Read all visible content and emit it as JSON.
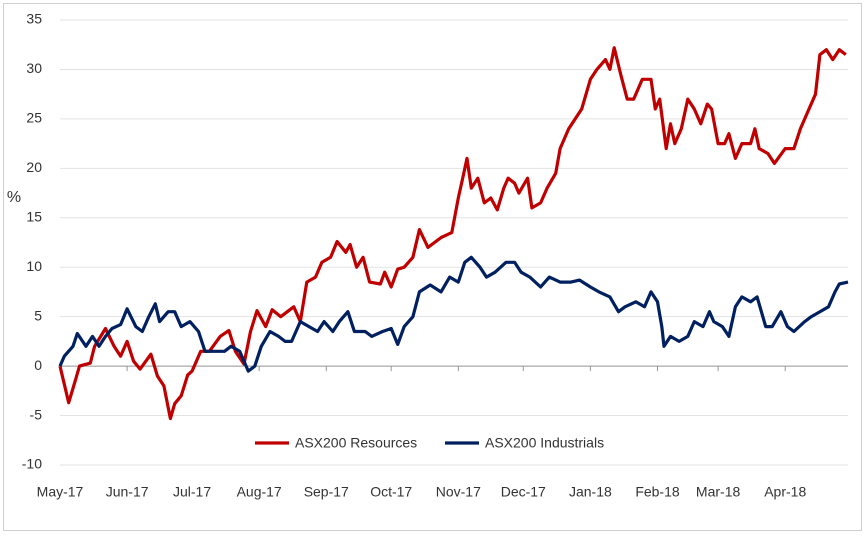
{
  "chart_data": {
    "type": "line",
    "y_label": "%",
    "ylim": [
      -10,
      35
    ],
    "yticks": [
      -10,
      -5,
      0,
      5,
      10,
      15,
      20,
      25,
      30,
      35
    ],
    "xlim": [
      0,
      364
    ],
    "xticks": [
      {
        "value": 0,
        "label": "May-17"
      },
      {
        "value": 31,
        "label": "Jun-17"
      },
      {
        "value": 61,
        "label": "Jul-17"
      },
      {
        "value": 92,
        "label": "Aug-17"
      },
      {
        "value": 123,
        "label": "Sep-17"
      },
      {
        "value": 153,
        "label": "Oct-17"
      },
      {
        "value": 184,
        "label": "Nov-17"
      },
      {
        "value": 214,
        "label": "Dec-17"
      },
      {
        "value": 245,
        "label": "Jan-18"
      },
      {
        "value": 276,
        "label": "Feb-18"
      },
      {
        "value": 304,
        "label": "Mar-18"
      },
      {
        "value": 335,
        "label": "Apr-18"
      }
    ],
    "grid": true,
    "legend": "bottom",
    "series": [
      {
        "name": "ASX200 Resources",
        "color": "#c00000",
        "x": [
          0,
          4,
          7,
          9,
          14,
          16,
          21,
          25,
          28,
          31,
          34,
          37,
          42,
          45,
          48,
          51,
          53,
          56,
          59,
          61,
          65,
          69,
          74,
          78,
          81,
          85,
          88,
          91,
          95,
          98,
          102,
          105,
          108,
          111,
          114,
          118,
          121,
          125,
          128,
          132,
          134,
          137,
          140,
          143,
          148,
          150,
          153,
          156,
          159,
          163,
          166,
          170,
          173,
          176,
          181,
          184,
          186,
          188,
          190,
          193,
          196,
          199,
          202,
          205,
          207,
          210,
          212,
          216,
          218,
          222,
          225,
          229,
          231,
          235,
          238,
          241,
          245,
          248,
          252,
          254,
          256,
          259,
          262,
          265,
          269,
          273,
          275,
          277,
          280,
          282,
          284,
          287,
          290,
          293,
          296,
          299,
          301,
          304,
          307,
          309,
          312,
          315,
          319,
          321,
          323,
          327,
          330,
          335,
          339,
          342,
          346,
          349,
          351,
          354,
          357,
          360,
          363
        ],
        "values": [
          0,
          -3.7,
          -1.5,
          0,
          0.3,
          2,
          3.8,
          2,
          1,
          2.5,
          0.5,
          -0.3,
          1.2,
          -1,
          -2,
          -5.3,
          -3.8,
          -3,
          -0.9,
          -0.5,
          1.5,
          1.5,
          3,
          3.6,
          1.5,
          0.2,
          3.5,
          5.6,
          4,
          5.7,
          5,
          5.5,
          6,
          4.5,
          8.5,
          9,
          10.5,
          11,
          12.6,
          11.5,
          12.3,
          10,
          11,
          8.5,
          8.3,
          9.5,
          8,
          9.8,
          10,
          11,
          13.8,
          12,
          12.5,
          13,
          13.5,
          17,
          19,
          21,
          18,
          19,
          16.5,
          17,
          15.8,
          18,
          19,
          18.5,
          17.5,
          19,
          16,
          16.5,
          18,
          19.5,
          22,
          24,
          25,
          26,
          29,
          30,
          31,
          30,
          32.2,
          29.5,
          27,
          27,
          29,
          29,
          26,
          27,
          22,
          24.5,
          22.5,
          24,
          27,
          26,
          24.5,
          26.5,
          26,
          22.5,
          22.5,
          23.5,
          21,
          22.5,
          22.5,
          24,
          22,
          21.5,
          20.5,
          22,
          22,
          24,
          26,
          27.5,
          31.5,
          32,
          31,
          32,
          31.5
        ]
      },
      {
        "name": "ASX200 Industrials",
        "color": "#002060",
        "x": [
          0,
          2,
          6,
          8,
          12,
          15,
          18,
          21,
          24,
          28,
          31,
          35,
          38,
          41,
          44,
          46,
          50,
          53,
          56,
          60,
          64,
          67,
          72,
          76,
          79,
          83,
          87,
          90,
          93,
          97,
          101,
          104,
          107,
          111,
          115,
          119,
          122,
          126,
          129,
          133,
          136,
          141,
          144,
          149,
          153,
          156,
          159,
          163,
          166,
          171,
          176,
          180,
          184,
          187,
          190,
          194,
          197,
          201,
          206,
          210,
          213,
          217,
          222,
          226,
          231,
          236,
          240,
          245,
          249,
          254,
          258,
          261,
          266,
          270,
          273,
          276,
          278,
          279,
          282,
          286,
          290,
          293,
          297,
          300,
          302,
          306,
          309,
          312,
          315,
          319,
          322,
          326,
          329,
          333,
          336,
          339,
          344,
          347,
          351,
          355,
          358,
          360,
          364
        ],
        "values": [
          0,
          1,
          2,
          3.3,
          2,
          3,
          2,
          3,
          3.8,
          4.2,
          5.8,
          4,
          3.5,
          5,
          6.3,
          4.5,
          5.5,
          5.5,
          4,
          4.5,
          3.5,
          1.5,
          1.5,
          1.5,
          2,
          1.5,
          -0.5,
          0,
          2,
          3.5,
          3,
          2.5,
          2.5,
          4.5,
          4,
          3.5,
          4.5,
          3.5,
          4.5,
          5.5,
          3.5,
          3.5,
          3,
          3.5,
          3.8,
          2.2,
          4,
          5,
          7.5,
          8.2,
          7.5,
          9,
          8.5,
          10.5,
          11,
          10,
          9,
          9.5,
          10.5,
          10.5,
          9.5,
          9,
          8,
          9,
          8.5,
          8.5,
          8.7,
          8,
          7.5,
          7,
          5.5,
          6,
          6.5,
          6,
          7.5,
          6.5,
          4,
          2,
          3,
          2.5,
          3,
          4.5,
          4,
          5.5,
          4.5,
          4,
          3,
          6,
          7,
          6.5,
          7,
          4,
          4,
          5.5,
          4,
          3.5,
          4.5,
          5,
          5.5,
          6,
          7.5,
          8.3,
          8.5
        ]
      }
    ]
  }
}
